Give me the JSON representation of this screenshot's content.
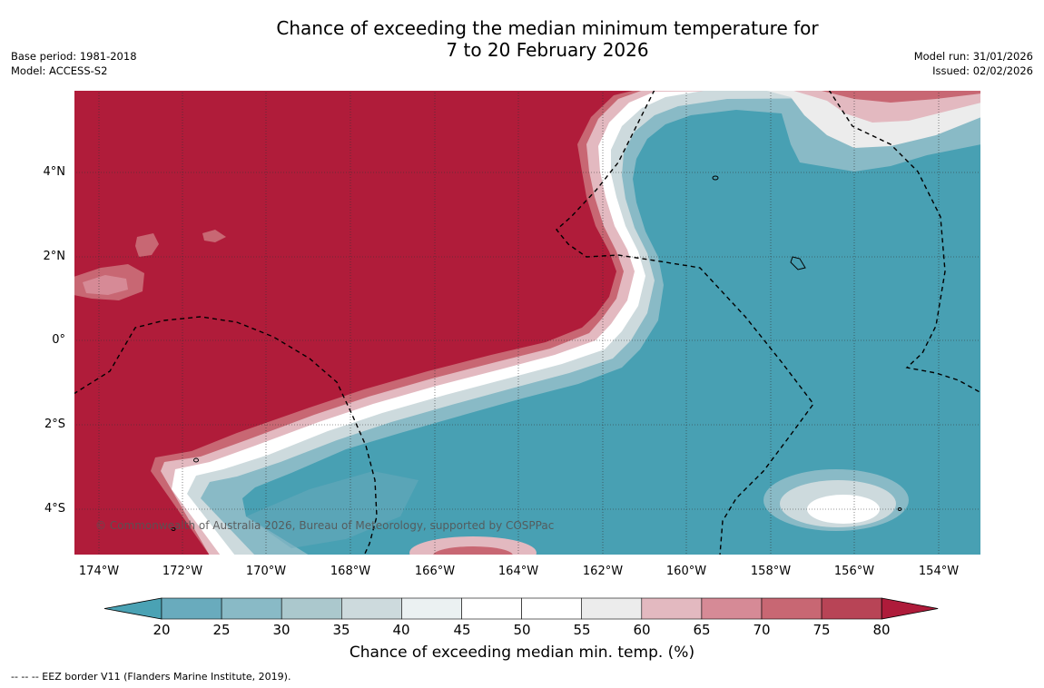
{
  "title_line1": "Chance of exceeding the median minimum temperature for",
  "title_line2": "7 to 20 February 2026",
  "meta_left": {
    "base_period": "Base period: 1981-2018",
    "model": "Model: ACCESS-S2"
  },
  "meta_right": {
    "model_run": "Model run: 31/01/2026",
    "issued": "Issued: 02/02/2026"
  },
  "map": {
    "copyright": "© Commonwealth of Australia 2026, Bureau of Meteorology, supported by COSPPac",
    "lat_labels": [
      "4°N",
      "2°N",
      "0°",
      "2°S",
      "4°S"
    ],
    "lon_labels": [
      "174°W",
      "172°W",
      "170°W",
      "168°W",
      "166°W",
      "164°W",
      "162°W",
      "160°W",
      "158°W",
      "156°W",
      "154°W"
    ],
    "colors": {
      "high": "#b01c3a",
      "low": "#48a0b3",
      "white": "#ffffff",
      "border": "#000000"
    }
  },
  "colorbar": {
    "ticks": [
      "20",
      "25",
      "30",
      "35",
      "40",
      "45",
      "50",
      "55",
      "60",
      "65",
      "70",
      "75",
      "80"
    ],
    "colors": [
      "#4aa2b4",
      "#69abbd",
      "#89bac6",
      "#abc8cd",
      "#cddadd",
      "#ebf1f2",
      "#ffffff",
      "#ffffff",
      "#ececec",
      "#e3b9c0",
      "#d68a96",
      "#c86773",
      "#b84456",
      "#ae1b3a"
    ],
    "label": "Chance of exceeding median min. temp. (%)"
  },
  "footnote": "--  --  -- EEZ border V11 (Flanders Marine Institute, 2019)."
}
